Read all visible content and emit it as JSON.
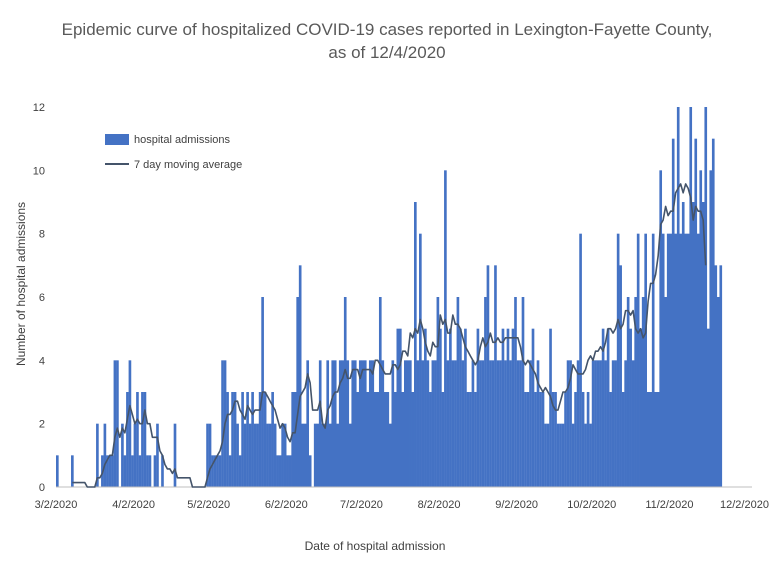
{
  "chart_data": {
    "type": "bar",
    "title": "Epidemic curve of hospitalized COVID-19 cases reported in Lexington-Fayette County, as of 12/4/2020",
    "xlabel": "Date of hospital admission",
    "ylabel": "Number of hospital admissions",
    "x_start": "3/2/2020",
    "x_end": "12/4/2020",
    "xlim": [
      "3/2/2020",
      "12/4/2020"
    ],
    "ylim": [
      0,
      12
    ],
    "y_ticks": [
      "0",
      "2",
      "4",
      "6",
      "8",
      "10",
      "12"
    ],
    "x_ticks": [
      "3/2/2020",
      "4/2/2020",
      "5/2/2020",
      "6/2/2020",
      "7/2/2020",
      "8/2/2020",
      "9/2/2020",
      "10/2/2020",
      "11/2/2020",
      "12/2/2020"
    ],
    "grid": false,
    "legend_position": "top-left",
    "series": [
      {
        "name": "hospital admissions",
        "kind": "bar",
        "color": "#4472c4",
        "values": [
          1,
          0,
          0,
          0,
          0,
          0,
          1,
          0,
          0,
          0,
          0,
          0,
          0,
          0,
          0,
          0,
          2,
          0,
          1,
          2,
          1,
          1,
          1,
          4,
          4,
          0,
          2,
          1,
          3,
          4,
          1,
          2,
          3,
          1,
          3,
          3,
          1,
          1,
          0,
          1,
          2,
          0,
          1,
          0,
          0,
          0,
          0,
          2,
          0,
          0,
          0,
          0,
          0,
          0,
          0,
          0,
          0,
          0,
          0,
          0,
          2,
          2,
          1,
          1,
          1,
          1,
          4,
          4,
          3,
          1,
          3,
          3,
          2,
          1,
          3,
          2,
          3,
          2,
          3,
          2,
          2,
          3,
          6,
          3,
          2,
          2,
          3,
          2,
          1,
          1,
          2,
          2,
          1,
          1,
          3,
          3,
          6,
          7,
          2,
          2,
          4,
          1,
          0,
          2,
          2,
          4,
          2,
          2,
          4,
          2,
          4,
          4,
          2,
          4,
          4,
          6,
          4,
          2,
          4,
          4,
          3,
          4,
          4,
          4,
          3,
          4,
          4,
          3,
          3,
          6,
          4,
          3,
          3,
          2,
          4,
          3,
          5,
          5,
          3,
          4,
          4,
          4,
          3,
          9,
          4,
          8,
          4,
          5,
          4,
          3,
          4,
          4,
          6,
          5,
          3,
          10,
          4,
          5,
          4,
          4,
          6,
          5,
          4,
          5,
          3,
          3,
          4,
          3,
          5,
          4,
          4,
          6,
          7,
          4,
          4,
          7,
          4,
          4,
          5,
          4,
          5,
          4,
          5,
          6,
          4,
          4,
          6,
          3,
          3,
          4,
          5,
          3,
          4,
          3,
          3,
          2,
          2,
          5,
          3,
          3,
          2,
          2,
          2,
          3,
          4,
          4,
          2,
          3,
          4,
          8,
          3,
          2,
          3,
          2,
          4,
          4,
          4,
          4,
          5,
          4,
          5,
          3,
          4,
          4,
          8,
          7,
          3,
          4,
          6,
          5,
          4,
          6,
          8,
          5,
          6,
          8,
          3,
          3,
          8,
          3,
          3,
          10,
          8,
          6,
          8,
          8,
          11,
          8,
          12,
          8,
          9,
          8,
          8,
          12,
          9,
          11,
          8,
          10,
          9,
          12,
          5,
          10,
          11,
          7,
          6,
          7
        ]
      },
      {
        "name": "7 day moving average",
        "kind": "line",
        "color": "#44546a",
        "values": [
          null,
          null,
          null,
          null,
          null,
          null,
          0.14,
          0.14,
          0.14,
          0.14,
          0.14,
          0.14,
          0.0,
          0.0,
          0.0,
          0.0,
          0.29,
          0.29,
          0.43,
          0.71,
          0.86,
          1.0,
          1.0,
          1.57,
          1.86,
          1.57,
          1.86,
          1.71,
          2.14,
          2.57,
          2.29,
          2.0,
          2.14,
          2.0,
          2.0,
          2.43,
          2.0,
          2.0,
          1.57,
          1.57,
          1.57,
          1.14,
          1.0,
          0.71,
          0.57,
          0.57,
          0.43,
          0.57,
          0.29,
          0.29,
          0.29,
          0.29,
          0.29,
          0.29,
          0.0,
          0.0,
          0.0,
          0.0,
          0.0,
          0.0,
          0.29,
          0.57,
          0.71,
          0.86,
          1.0,
          1.14,
          1.43,
          2.0,
          2.29,
          2.29,
          2.43,
          2.71,
          2.71,
          2.43,
          2.29,
          2.14,
          2.57,
          2.43,
          2.29,
          2.43,
          2.43,
          2.43,
          3.0,
          3.0,
          2.86,
          2.71,
          2.57,
          2.43,
          2.14,
          1.86,
          2.0,
          1.86,
          1.57,
          1.43,
          1.71,
          1.71,
          2.29,
          2.86,
          3.0,
          3.14,
          3.57,
          3.29,
          2.43,
          2.43,
          2.43,
          2.71,
          2.0,
          1.86,
          2.43,
          2.57,
          2.86,
          3.0,
          3.0,
          3.29,
          3.43,
          3.71,
          3.43,
          3.43,
          3.71,
          3.71,
          3.71,
          3.43,
          3.71,
          3.71,
          3.71,
          3.71,
          3.57,
          4.0,
          4.0,
          3.86,
          3.71,
          3.57,
          3.57,
          3.57,
          3.86,
          3.86,
          3.71,
          3.86,
          4.29,
          4.29,
          4.14,
          4.86,
          4.71,
          5.0,
          4.86,
          5.29,
          5.0,
          4.57,
          4.29,
          4.14,
          4.57,
          4.43,
          4.43,
          5.43,
          5.14,
          5.29,
          4.86,
          4.86,
          5.43,
          5.14,
          5.14,
          5.0,
          4.71,
          4.43,
          4.29,
          4.14,
          4.0,
          3.86,
          4.0,
          4.43,
          4.71,
          4.43,
          4.57,
          4.86,
          4.57,
          4.57,
          4.71,
          4.57,
          4.57,
          4.71,
          4.71,
          4.71,
          4.71,
          4.71,
          4.71,
          4.43,
          4.0,
          3.86,
          4.0,
          3.86,
          3.71,
          3.57,
          3.29,
          3.14,
          3.0,
          3.14,
          3.0,
          2.86,
          2.57,
          2.43,
          2.43,
          2.71,
          3.0,
          3.0,
          3.14,
          3.43,
          3.86,
          3.71,
          3.57,
          3.57,
          3.57,
          3.71,
          4.0,
          4.14,
          4.0,
          4.29,
          4.29,
          4.43,
          4.29,
          4.57,
          5.0,
          5.0,
          4.86,
          5.0,
          5.29,
          5.0,
          5.14,
          5.57,
          5.57,
          5.43,
          5.57,
          5.0,
          4.86,
          5.0,
          4.71,
          4.86,
          5.86,
          6.43,
          6.43,
          6.71,
          7.29,
          8.29,
          8.43,
          8.86,
          8.57,
          8.71,
          8.71,
          9.29,
          9.43,
          9.57,
          9.29,
          9.57,
          9.43,
          9.14,
          8.43,
          8.86,
          8.71,
          8.71,
          8.43,
          7.0
        ]
      }
    ]
  }
}
